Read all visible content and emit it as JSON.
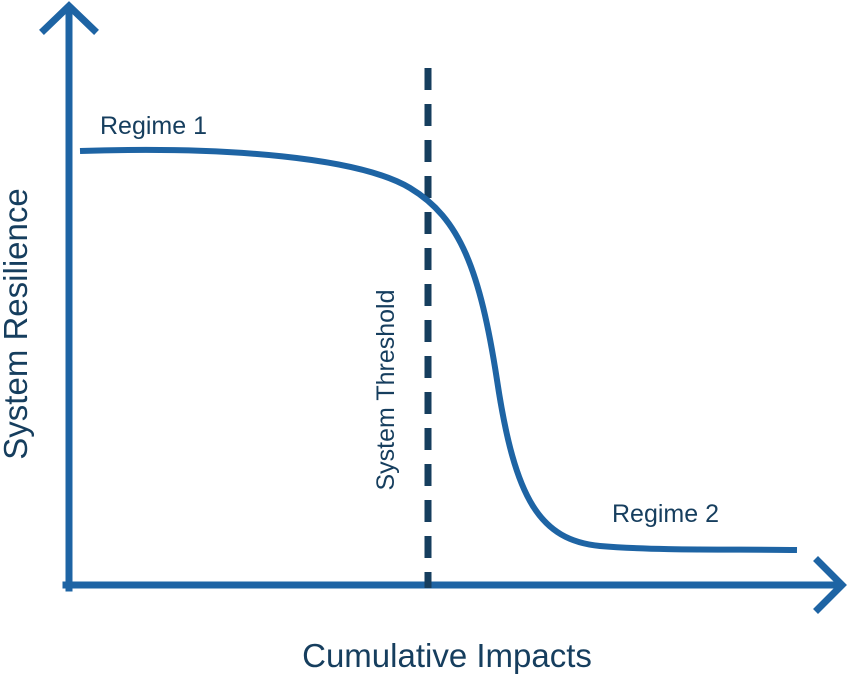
{
  "diagram": {
    "axis_y_label": "System Resilience",
    "axis_x_label": "Cumulative Impacts",
    "regime_1_label": "Regime 1",
    "regime_2_label": "Regime 2",
    "threshold_label": "System Threshold"
  },
  "colors": {
    "axis": "#1e64a4",
    "curve": "#1e64a4",
    "threshold_line": "#163e5e",
    "text": "#163e5e"
  }
}
